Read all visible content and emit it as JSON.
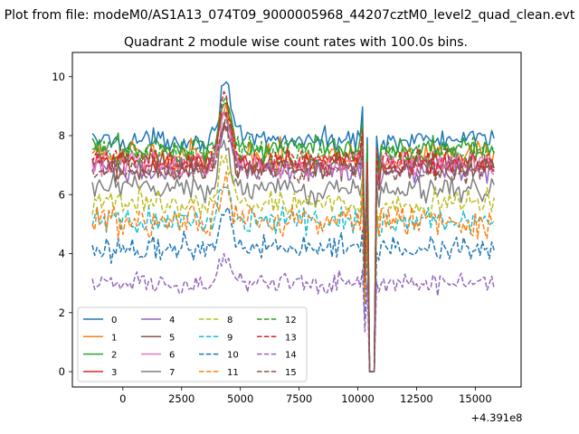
{
  "chart_data": {
    "type": "line",
    "suptitle": "Plot from file: modeM0/AS1A13_074T09_9000005968_44207cztM0_level2_quad_clean.evt",
    "title": "Quadrant 2 module wise count rates with 100.0s bins.",
    "xlabel": "",
    "ylabel": "",
    "x_offset_label": "+4.391e8",
    "xlim": [
      -2150,
      16950
    ],
    "ylim": [
      -0.52,
      10.82
    ],
    "x_ticks": [
      0,
      2500,
      5000,
      7500,
      10000,
      12500,
      15000
    ],
    "x_tick_labels": [
      "0",
      "2500",
      "5000",
      "7500",
      "10000",
      "12500",
      "15000"
    ],
    "y_ticks": [
      0,
      2,
      4,
      6,
      8,
      10
    ],
    "y_tick_labels": [
      "0",
      "2",
      "4",
      "6",
      "8",
      "10"
    ],
    "x_start": -1300,
    "x_end": 15800,
    "x_step": 100,
    "legend_position": "lower-left",
    "legend_ncol": 4,
    "series": [
      {
        "name": "0",
        "color": "#1f77b4",
        "dash": "solid",
        "base": 7.85,
        "noise": 0.25,
        "flare": 2.1,
        "spike": 1.3
      },
      {
        "name": "1",
        "color": "#ff7f0e",
        "dash": "solid",
        "base": 7.3,
        "noise": 0.35,
        "flare": 1.7,
        "spike": 1.0
      },
      {
        "name": "2",
        "color": "#2ca02c",
        "dash": "solid",
        "base": 7.6,
        "noise": 0.3,
        "flare": 1.6,
        "spike": 0.8
      },
      {
        "name": "3",
        "color": "#d62728",
        "dash": "solid",
        "base": 7.1,
        "noise": 0.3,
        "flare": 1.8,
        "spike": 1.0
      },
      {
        "name": "4",
        "color": "#9467bd",
        "dash": "solid",
        "base": 6.85,
        "noise": 0.3,
        "flare": 1.5,
        "spike": 1.0
      },
      {
        "name": "5",
        "color": "#8c564b",
        "dash": "solid",
        "base": 6.9,
        "noise": 0.3,
        "flare": 1.5,
        "spike": 0.9
      },
      {
        "name": "6",
        "color": "#e377c2",
        "dash": "solid",
        "base": 7.05,
        "noise": 0.3,
        "flare": 1.7,
        "spike": 0.9
      },
      {
        "name": "7",
        "color": "#7f7f7f",
        "dash": "solid",
        "base": 6.2,
        "noise": 0.3,
        "flare": 1.5,
        "spike": 0.8
      },
      {
        "name": "8",
        "color": "#bcbd22",
        "dash": "dashed",
        "base": 5.7,
        "noise": 0.3,
        "flare": 1.6,
        "spike": 0.9
      },
      {
        "name": "9",
        "color": "#17becf",
        "dash": "dashed",
        "base": 5.1,
        "noise": 0.3,
        "flare": 1.3,
        "spike": 0.8
      },
      {
        "name": "10",
        "color": "#1f77b4",
        "dash": "dashed",
        "base": 4.2,
        "noise": 0.3,
        "flare": 1.2,
        "spike": 0.8
      },
      {
        "name": "11",
        "color": "#ff7f0e",
        "dash": "dashed",
        "base": 5.1,
        "noise": 0.35,
        "flare": 1.3,
        "spike": 0.9
      },
      {
        "name": "12",
        "color": "#2ca02c",
        "dash": "dashed",
        "base": 7.4,
        "noise": 0.3,
        "flare": 1.8,
        "spike": 0.8
      },
      {
        "name": "13",
        "color": "#d62728",
        "dash": "dashed",
        "base": 7.15,
        "noise": 0.3,
        "flare": 2.3,
        "spike": 1.5
      },
      {
        "name": "14",
        "color": "#9467bd",
        "dash": "dashed",
        "base": 3.0,
        "noise": 0.25,
        "flare": 0.9,
        "spike": 0.5
      },
      {
        "name": "15",
        "color": "#8c564b",
        "dash": "dashed",
        "base": 6.85,
        "noise": 0.3,
        "flare": 1.6,
        "spike": 0.9
      }
    ],
    "features": {
      "flare_center": 4350,
      "flare_width": 330,
      "drop_start": 10300,
      "drop_end": 10900,
      "drop_floor_start": 10500,
      "drop_floor_end": 10700,
      "pre_drop_spike_x": 10200,
      "post_drop_spike_x": 10900
    }
  }
}
